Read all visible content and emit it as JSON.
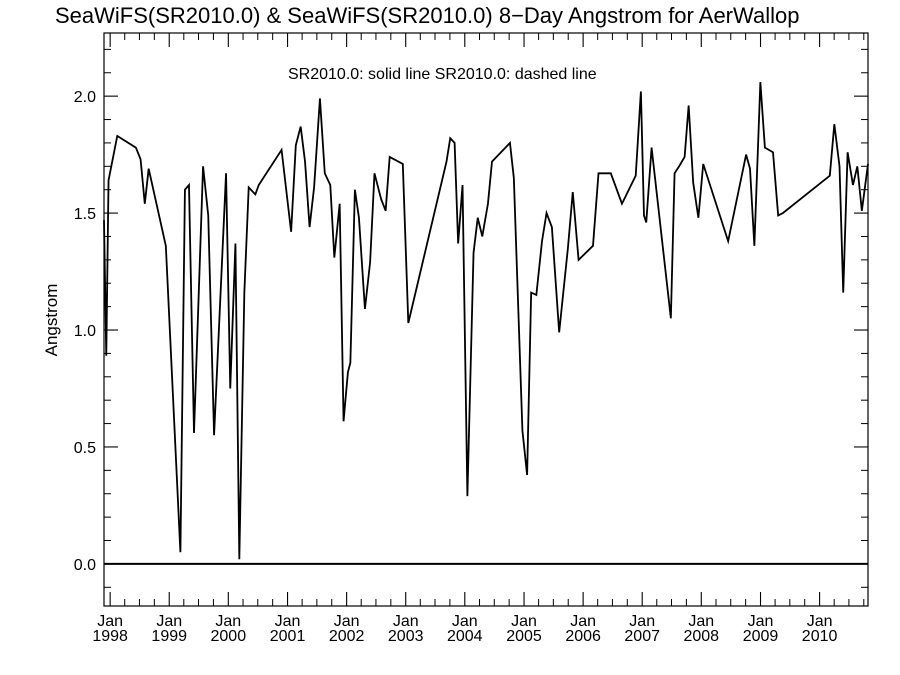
{
  "chart_data": {
    "type": "line",
    "title": "SeaWiFS(SR2010.0) & SeaWiFS(SR2010.0) 8−Day Angstrom for AerWallop",
    "subtitle": "SR2010.0: solid line   SR2010.0: dashed line",
    "ylabel": "Angstrom",
    "xlabel": "",
    "xlim": [
      "1997-11-24",
      "2010-10-27"
    ],
    "ylim": [
      -0.18,
      2.27
    ],
    "grid": false,
    "legend": "none",
    "x_ticks": [
      {
        "month": "Jan",
        "year": "1998",
        "date": "1998-01-01"
      },
      {
        "month": "Jan",
        "year": "1999",
        "date": "1999-01-01"
      },
      {
        "month": "Jan",
        "year": "2000",
        "date": "2000-01-01"
      },
      {
        "month": "Jan",
        "year": "2001",
        "date": "2001-01-01"
      },
      {
        "month": "Jan",
        "year": "2002",
        "date": "2002-01-01"
      },
      {
        "month": "Jan",
        "year": "2003",
        "date": "2003-01-01"
      },
      {
        "month": "Jan",
        "year": "2004",
        "date": "2004-01-01"
      },
      {
        "month": "Jan",
        "year": "2005",
        "date": "2005-01-01"
      },
      {
        "month": "Jan",
        "year": "2006",
        "date": "2006-01-01"
      },
      {
        "month": "Jan",
        "year": "2007",
        "date": "2007-01-01"
      },
      {
        "month": "Jan",
        "year": "2008",
        "date": "2008-01-01"
      },
      {
        "month": "Jan",
        "year": "2009",
        "date": "2009-01-01"
      },
      {
        "month": "Jan",
        "year": "2010",
        "date": "2010-01-01"
      }
    ],
    "y_ticks": [
      {
        "value": 0.0,
        "label": "0.0"
      },
      {
        "value": 0.5,
        "label": "0.5"
      },
      {
        "value": 1.0,
        "label": "1.0"
      },
      {
        "value": 1.5,
        "label": "1.5"
      },
      {
        "value": 2.0,
        "label": "2.0"
      }
    ],
    "reference_lines": [
      {
        "y": 0.0
      }
    ],
    "series": [
      {
        "style": "solid",
        "color": "#000000",
        "x": [
          "1997-11-24",
          "1997-12-08",
          "1997-12-22",
          "1998-02-14",
          "1998-06-09",
          "1998-07-08",
          "1998-08-03",
          "1998-08-27",
          "1998-12-11",
          "1999-03-11",
          "1999-04-08",
          "1999-05-03",
          "1999-06-03",
          "1999-07-29",
          "1999-08-30",
          "1999-10-05",
          "1999-12-18",
          "2000-01-13",
          "2000-02-14",
          "2000-03-09",
          "2000-04-09",
          "2000-05-06",
          "2000-06-16",
          "2000-07-07",
          "2000-11-25",
          "2001-01-23",
          "2001-02-21",
          "2001-03-23",
          "2001-04-19",
          "2001-05-17",
          "2001-06-14",
          "2001-07-20",
          "2001-08-19",
          "2001-09-22",
          "2001-10-17",
          "2001-11-19",
          "2001-12-13",
          "2002-01-09",
          "2002-01-24",
          "2002-02-21",
          "2002-03-18",
          "2002-04-24",
          "2002-05-26",
          "2002-06-22",
          "2002-08-02",
          "2002-08-30",
          "2002-09-24",
          "2002-12-14",
          "2003-01-17",
          "2003-09-10",
          "2003-10-03",
          "2003-10-30",
          "2003-11-21",
          "2003-12-18",
          "2004-01-17",
          "2004-02-24",
          "2004-03-21",
          "2004-04-18",
          "2004-05-23",
          "2004-06-17",
          "2004-10-06",
          "2004-10-30",
          "2004-12-22",
          "2005-01-20",
          "2005-02-14",
          "2005-03-18",
          "2005-04-22",
          "2005-05-20",
          "2005-06-22",
          "2005-08-06",
          "2005-09-29",
          "2005-10-29",
          "2005-12-04",
          "2006-03-03",
          "2006-04-06",
          "2006-06-21",
          "2006-08-29",
          "2006-11-22",
          "2006-12-24",
          "2007-01-12",
          "2007-01-26",
          "2007-02-28",
          "2007-06-27",
          "2007-07-20",
          "2007-08-17",
          "2007-09-20",
          "2007-10-15",
          "2007-11-12",
          "2007-12-14",
          "2008-01-13",
          "2008-06-15",
          "2008-10-04",
          "2008-10-28",
          "2008-11-24",
          "2008-12-31",
          "2009-01-28",
          "2009-03-19",
          "2009-04-20",
          "2009-05-19",
          "2010-03-05",
          "2010-04-02",
          "2010-05-04",
          "2010-05-27",
          "2010-06-23",
          "2010-07-26",
          "2010-08-22",
          "2010-09-19",
          "2010-10-27"
        ],
        "y": [
          1.47,
          0.89,
          1.64,
          1.83,
          1.78,
          1.73,
          1.54,
          1.69,
          1.36,
          0.05,
          1.6,
          1.62,
          0.56,
          1.7,
          1.49,
          0.55,
          1.67,
          0.75,
          1.37,
          0.02,
          1.16,
          1.61,
          1.58,
          1.62,
          1.77,
          1.42,
          1.79,
          1.87,
          1.72,
          1.44,
          1.61,
          1.99,
          1.67,
          1.62,
          1.31,
          1.54,
          0.61,
          0.82,
          0.86,
          1.6,
          1.48,
          1.09,
          1.29,
          1.67,
          1.56,
          1.51,
          1.74,
          1.71,
          1.03,
          1.72,
          1.82,
          1.8,
          1.37,
          1.62,
          0.29,
          1.33,
          1.48,
          1.4,
          1.54,
          1.72,
          1.8,
          1.65,
          0.57,
          0.38,
          1.16,
          1.15,
          1.38,
          1.5,
          1.44,
          0.99,
          1.35,
          1.59,
          1.3,
          1.36,
          1.67,
          1.67,
          1.54,
          1.66,
          2.02,
          1.49,
          1.46,
          1.78,
          1.05,
          1.67,
          1.7,
          1.74,
          1.96,
          1.63,
          1.48,
          1.71,
          1.38,
          1.75,
          1.69,
          1.36,
          2.06,
          1.78,
          1.76,
          1.49,
          1.5,
          1.66,
          1.88,
          1.7,
          1.16,
          1.76,
          1.62,
          1.7,
          1.51,
          1.71
        ]
      }
    ]
  }
}
